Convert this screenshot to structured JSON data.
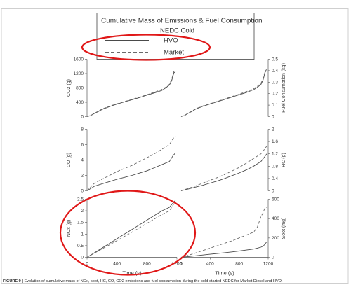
{
  "legend": {
    "title": "Cumulative Mass of Emissions & Fuel Consumption",
    "cycle": "NEDC Cold",
    "entries": [
      "HVO",
      "Market"
    ]
  },
  "caption": {
    "label": "FIGURE 9 |",
    "text": "Evolution of cumulative mass of NOx, soot, HC, CO, CO2 emissions and fuel consumption during the cold-started NEDC for Market Diesel and HVO."
  },
  "colors": {
    "hvo": "#4a4a4a",
    "market": "#6a6a6a",
    "highlight": "#e01818",
    "axis": "#555555"
  },
  "chart_data": [
    {
      "type": "line",
      "panel": "co2",
      "ylabel": "CO2 (g)",
      "ylim": [
        0,
        1600
      ],
      "yticks": [
        "0",
        "400",
        "800",
        "1200",
        "1600"
      ],
      "xlim": [
        0,
        1200
      ],
      "series": [
        {
          "name": "HVO",
          "x": [
            0,
            50,
            100,
            150,
            200,
            300,
            400,
            500,
            600,
            700,
            800,
            900,
            1000,
            1050,
            1100,
            1130,
            1160,
            1180
          ],
          "y": [
            0,
            30,
            90,
            140,
            200,
            280,
            350,
            410,
            470,
            530,
            600,
            660,
            730,
            800,
            880,
            1000,
            1220,
            1250
          ]
        },
        {
          "name": "Market",
          "x": [
            0,
            50,
            100,
            150,
            200,
            300,
            400,
            500,
            600,
            700,
            800,
            900,
            1000,
            1050,
            1100,
            1130,
            1160,
            1180
          ],
          "y": [
            0,
            35,
            95,
            150,
            210,
            290,
            360,
            420,
            480,
            545,
            610,
            680,
            760,
            820,
            900,
            1040,
            1260,
            1290
          ]
        }
      ]
    },
    {
      "type": "line",
      "panel": "fuel",
      "ylabel": "Fuel Consumption (kg)",
      "ylim": [
        0,
        0.5
      ],
      "yticks": [
        "0",
        "0.1",
        "0.2",
        "0.3",
        "0.4",
        "0.5"
      ],
      "xlim": [
        0,
        1200
      ],
      "series": [
        {
          "name": "HVO",
          "x": [
            0,
            50,
            100,
            150,
            200,
            300,
            400,
            500,
            600,
            700,
            800,
            900,
            1000,
            1050,
            1100,
            1130,
            1160,
            1180
          ],
          "y": [
            0,
            0.01,
            0.03,
            0.045,
            0.065,
            0.09,
            0.11,
            0.13,
            0.15,
            0.17,
            0.19,
            0.21,
            0.235,
            0.255,
            0.28,
            0.32,
            0.39,
            0.4
          ]
        },
        {
          "name": "Market",
          "x": [
            0,
            50,
            100,
            150,
            200,
            300,
            400,
            500,
            600,
            700,
            800,
            900,
            1000,
            1050,
            1100,
            1130,
            1160,
            1180
          ],
          "y": [
            0,
            0.012,
            0.032,
            0.048,
            0.068,
            0.093,
            0.113,
            0.133,
            0.153,
            0.175,
            0.195,
            0.218,
            0.243,
            0.263,
            0.29,
            0.33,
            0.4,
            0.41
          ]
        }
      ]
    },
    {
      "type": "line",
      "panel": "co",
      "ylabel": "CO (g)",
      "ylim": [
        0,
        8
      ],
      "yticks": [
        "0",
        "2",
        "4",
        "6",
        "8"
      ],
      "xlim": [
        0,
        1200
      ],
      "series": [
        {
          "name": "HVO",
          "x": [
            0,
            50,
            100,
            200,
            300,
            400,
            500,
            600,
            700,
            800,
            900,
            1000,
            1100,
            1150,
            1180
          ],
          "y": [
            0,
            0.3,
            0.6,
            0.9,
            1.2,
            1.5,
            1.75,
            2.0,
            2.3,
            2.6,
            3.0,
            3.4,
            3.8,
            4.6,
            4.9
          ]
        },
        {
          "name": "Market",
          "x": [
            0,
            50,
            100,
            200,
            300,
            400,
            500,
            600,
            700,
            800,
            900,
            1000,
            1100,
            1150,
            1180
          ],
          "y": [
            0,
            0.5,
            1.0,
            1.5,
            2.0,
            2.5,
            2.9,
            3.3,
            3.8,
            4.3,
            4.8,
            5.4,
            6.0,
            6.8,
            7.1
          ]
        }
      ]
    },
    {
      "type": "line",
      "panel": "hc",
      "ylabel": "HC (g)",
      "ylim": [
        0,
        2
      ],
      "yticks": [
        "0",
        "0.4",
        "0.8",
        "1.2",
        "1.6",
        "2"
      ],
      "xlim": [
        0,
        1200
      ],
      "series": [
        {
          "name": "HVO",
          "x": [
            0,
            50,
            100,
            200,
            300,
            400,
            500,
            600,
            700,
            800,
            900,
            1000,
            1100,
            1150,
            1180
          ],
          "y": [
            0,
            0.03,
            0.06,
            0.12,
            0.18,
            0.25,
            0.32,
            0.4,
            0.49,
            0.58,
            0.68,
            0.8,
            0.95,
            1.1,
            1.2
          ]
        },
        {
          "name": "Market",
          "x": [
            0,
            50,
            100,
            200,
            300,
            400,
            500,
            600,
            700,
            800,
            900,
            1000,
            1100,
            1150,
            1180
          ],
          "y": [
            0,
            0.04,
            0.08,
            0.16,
            0.25,
            0.34,
            0.43,
            0.53,
            0.64,
            0.76,
            0.9,
            1.05,
            1.2,
            1.35,
            1.45
          ]
        }
      ]
    },
    {
      "type": "line",
      "panel": "nox",
      "ylabel": "NOx (g)",
      "xlabel": "Time (s)",
      "ylim": [
        0,
        2.5
      ],
      "yticks": [
        "0",
        "0.5",
        "1",
        "1.5",
        "2",
        "2.5"
      ],
      "xlim": [
        0,
        1200
      ],
      "xticks": [
        "0",
        "400",
        "800",
        "1200"
      ],
      "series": [
        {
          "name": "HVO",
          "x": [
            0,
            50,
            100,
            200,
            300,
            400,
            500,
            600,
            700,
            800,
            900,
            1000,
            1100,
            1150,
            1180
          ],
          "y": [
            0,
            0.1,
            0.2,
            0.4,
            0.6,
            0.8,
            1.0,
            1.2,
            1.4,
            1.6,
            1.8,
            2.0,
            2.15,
            2.35,
            2.45
          ]
        },
        {
          "name": "Market",
          "x": [
            0,
            50,
            100,
            200,
            300,
            400,
            500,
            600,
            700,
            800,
            900,
            1000,
            1100,
            1150,
            1180
          ],
          "y": [
            0,
            0.09,
            0.18,
            0.36,
            0.54,
            0.72,
            0.9,
            1.08,
            1.27,
            1.46,
            1.65,
            1.84,
            2.0,
            2.25,
            2.4
          ]
        }
      ]
    },
    {
      "type": "line",
      "panel": "soot",
      "ylabel": "Soot (mg)",
      "xlabel": "Time (s)",
      "ylim": [
        0,
        600
      ],
      "yticks": [
        "0",
        "200",
        "400",
        "600"
      ],
      "xlim": [
        0,
        1200
      ],
      "xticks": [
        "0",
        "400",
        "800",
        "1200"
      ],
      "series": [
        {
          "name": "HVO",
          "x": [
            0,
            100,
            200,
            300,
            400,
            500,
            600,
            700,
            800,
            900,
            1000,
            1050,
            1100,
            1130,
            1150,
            1180
          ],
          "y": [
            0,
            8,
            16,
            24,
            32,
            40,
            48,
            56,
            65,
            75,
            85,
            95,
            105,
            115,
            130,
            160
          ]
        },
        {
          "name": "Market",
          "x": [
            0,
            100,
            200,
            300,
            400,
            500,
            600,
            700,
            800,
            900,
            1000,
            1050,
            1100,
            1130,
            1150,
            1180
          ],
          "y": [
            0,
            20,
            45,
            70,
            95,
            120,
            145,
            170,
            200,
            230,
            260,
            310,
            420,
            460,
            500,
            520
          ]
        }
      ]
    }
  ]
}
